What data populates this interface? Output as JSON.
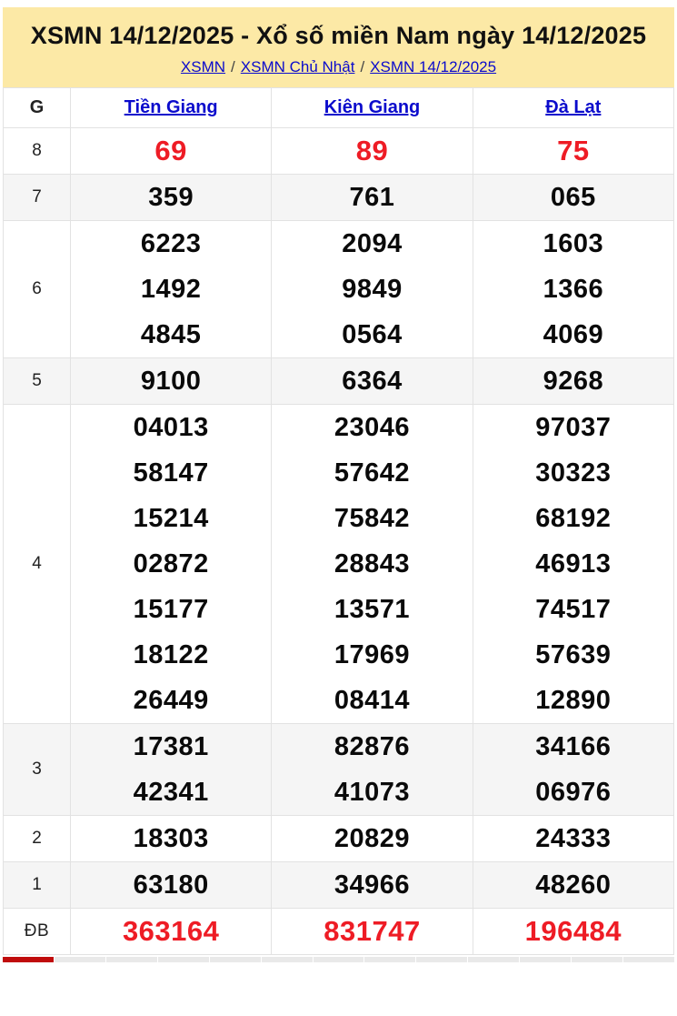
{
  "header": {
    "title": "XSMN 14/12/2025 - Xổ số miền Nam ngày 14/12/2025",
    "breadcrumb_separator": "/",
    "breadcrumb": [
      {
        "label": "XSMN"
      },
      {
        "label": "XSMN Chủ Nhật"
      },
      {
        "label": "XSMN 14/12/2025"
      }
    ]
  },
  "table": {
    "corner_label": "G",
    "columns": [
      {
        "label": "Tiền Giang"
      },
      {
        "label": "Kiên Giang"
      },
      {
        "label": "Đà Lạt"
      }
    ],
    "rows": [
      {
        "label": "8",
        "highlight": true,
        "cells": [
          [
            "69"
          ],
          [
            "89"
          ],
          [
            "75"
          ]
        ]
      },
      {
        "label": "7",
        "highlight": false,
        "cells": [
          [
            "359"
          ],
          [
            "761"
          ],
          [
            "065"
          ]
        ]
      },
      {
        "label": "6",
        "highlight": false,
        "cells": [
          [
            "6223",
            "1492",
            "4845"
          ],
          [
            "2094",
            "9849",
            "0564"
          ],
          [
            "1603",
            "1366",
            "4069"
          ]
        ]
      },
      {
        "label": "5",
        "highlight": false,
        "cells": [
          [
            "9100"
          ],
          [
            "6364"
          ],
          [
            "9268"
          ]
        ]
      },
      {
        "label": "4",
        "highlight": false,
        "cells": [
          [
            "04013",
            "58147",
            "15214",
            "02872",
            "15177",
            "18122",
            "26449"
          ],
          [
            "23046",
            "57642",
            "75842",
            "28843",
            "13571",
            "17969",
            "08414"
          ],
          [
            "97037",
            "30323",
            "68192",
            "46913",
            "74517",
            "57639",
            "12890"
          ]
        ]
      },
      {
        "label": "3",
        "highlight": false,
        "cells": [
          [
            "17381",
            "42341"
          ],
          [
            "82876",
            "41073"
          ],
          [
            "34166",
            "06976"
          ]
        ]
      },
      {
        "label": "2",
        "highlight": false,
        "cells": [
          [
            "18303"
          ],
          [
            "20829"
          ],
          [
            "24333"
          ]
        ]
      },
      {
        "label": "1",
        "highlight": false,
        "cells": [
          [
            "63180"
          ],
          [
            "34966"
          ],
          [
            "48260"
          ]
        ]
      },
      {
        "label": "ĐB",
        "highlight": true,
        "cells": [
          [
            "363164"
          ],
          [
            "831747"
          ],
          [
            "196484"
          ]
        ]
      }
    ]
  },
  "next_section_strip": {
    "segments": 13,
    "active_segment_index": 0
  },
  "colors": {
    "banner_background": "#fce9a6",
    "link_blue": "#0b0bcc",
    "highlight_red": "#ee1c25",
    "alt_row_gray": "#f5f5f5",
    "strip_active_red": "#c00c0c"
  }
}
